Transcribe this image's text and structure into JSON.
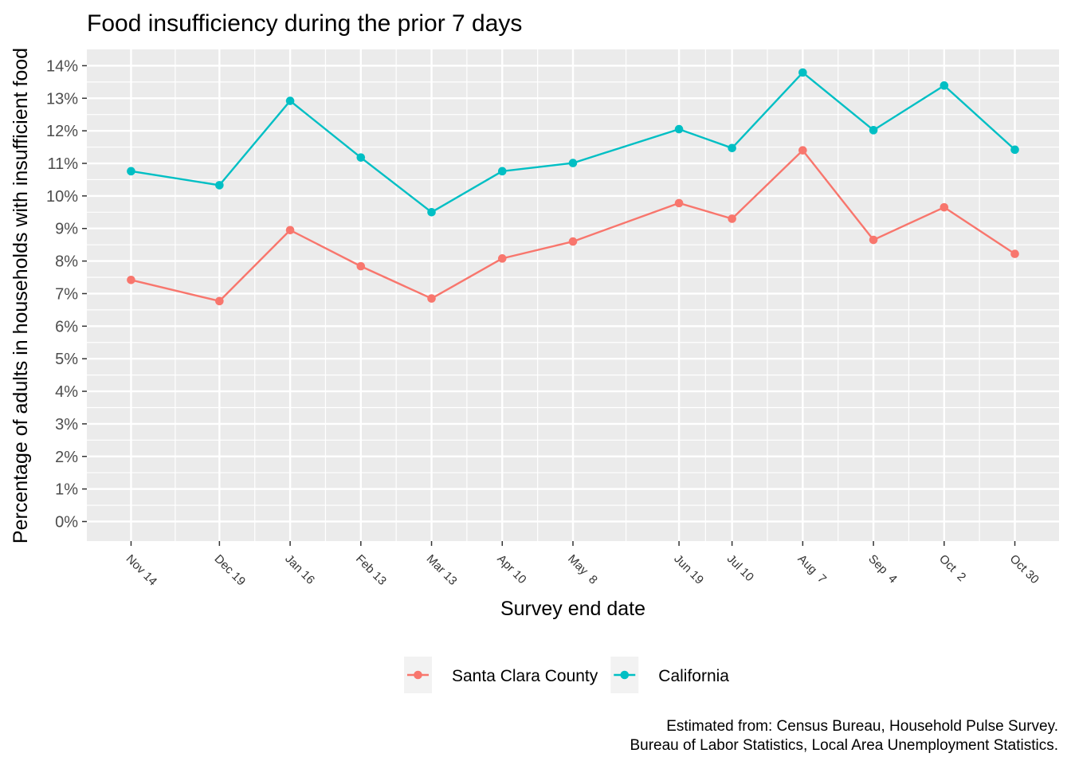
{
  "chart_data": {
    "type": "line",
    "title": "Food insufficiency during the prior 7 days",
    "xlabel": "Survey end date",
    "ylabel": "Percentage of adults in households with insufficient food",
    "x": [
      "2020-11-14",
      "2020-12-19",
      "2021-01-16",
      "2021-02-13",
      "2021-03-13",
      "2021-04-10",
      "2021-05-08",
      "2021-06-19",
      "2021-07-10",
      "2021-08-07",
      "2021-09-04",
      "2021-10-02",
      "2021-10-30"
    ],
    "x_tick_labels": [
      "Nov 14",
      "Dec 19",
      "Jan 16",
      "Feb 13",
      "Mar 13",
      "Apr 10",
      "May  8",
      "Jun 19",
      "Jul 10",
      "Aug  7",
      "Sep  4",
      "Oct  2",
      "Oct 30"
    ],
    "y_ticks": [
      0,
      1,
      2,
      3,
      4,
      5,
      6,
      7,
      8,
      9,
      10,
      11,
      12,
      13,
      14
    ],
    "y_tick_labels": [
      "0%",
      "1%",
      "2%",
      "3%",
      "4%",
      "5%",
      "6%",
      "7%",
      "8%",
      "9%",
      "10%",
      "11%",
      "12%",
      "13%",
      "14%"
    ],
    "ylim": [
      -0.6,
      14.5
    ],
    "grid": true,
    "legend_position": "bottom",
    "series": [
      {
        "name": "Santa Clara County",
        "color": "#F8766D",
        "values": [
          7.42,
          6.77,
          8.95,
          7.84,
          6.85,
          8.08,
          8.6,
          9.78,
          9.3,
          11.4,
          8.65,
          9.65,
          8.22
        ]
      },
      {
        "name": "California",
        "color": "#00BFC4",
        "values": [
          10.76,
          10.33,
          12.92,
          11.18,
          9.5,
          10.76,
          11.01,
          12.05,
          11.47,
          13.79,
          12.02,
          13.39,
          11.42
        ]
      }
    ],
    "caption": [
      "Estimated from: Census Bureau, Household Pulse Survey.",
      "Bureau of Labor Statistics, Local Area Unemployment Statistics."
    ]
  }
}
